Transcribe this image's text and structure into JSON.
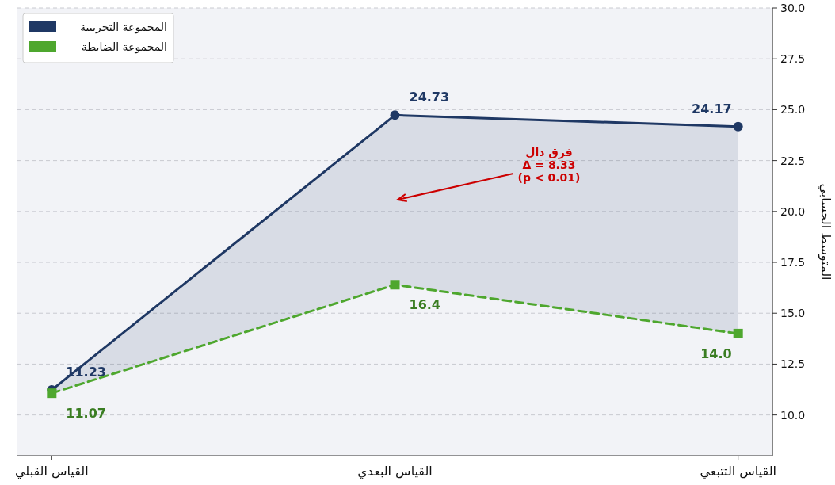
{
  "chart_data": {
    "type": "line",
    "categories": [
      "القياس القبلي",
      "القياس البعدي",
      "القياس التتبعي"
    ],
    "series": [
      {
        "name": "المجموعة التجريبية",
        "color": "#1f3864",
        "values": [
          11.23,
          24.73,
          24.17
        ],
        "marker": "circle",
        "line_style": "solid",
        "lower": [
          11.07,
          16.4,
          14.0
        ],
        "upper": [
          11.23,
          24.73,
          24.17
        ],
        "value_labels": [
          "11.23",
          "24.73",
          "24.17"
        ]
      },
      {
        "name": "المجموعة الضابطة",
        "color": "#4ea72e",
        "values": [
          11.07,
          16.4,
          14.0
        ],
        "marker": "square",
        "line_style": "dashed",
        "value_labels": [
          "11.07",
          "16.4",
          "14.0"
        ]
      }
    ],
    "ylim": [
      8,
      30
    ],
    "yticks": [
      {
        "value": 10,
        "label": "10.0"
      },
      {
        "value": 12.5,
        "label": "12.5"
      },
      {
        "value": 15,
        "label": "15.0"
      },
      {
        "value": 17.5,
        "label": "17.5"
      },
      {
        "value": 20,
        "label": "20.0"
      },
      {
        "value": 22.5,
        "label": "22.5"
      },
      {
        "value": 25,
        "label": "25.0"
      },
      {
        "value": 27.5,
        "label": "27.5"
      },
      {
        "value": 30,
        "label": "30.0"
      }
    ],
    "ylabel": "المتوسط الحسابي",
    "annotations": [
      "فرق دال\nΔ = 8.33\n(p < 0.01)"
    ],
    "grid": "y",
    "legend": "top left"
  }
}
